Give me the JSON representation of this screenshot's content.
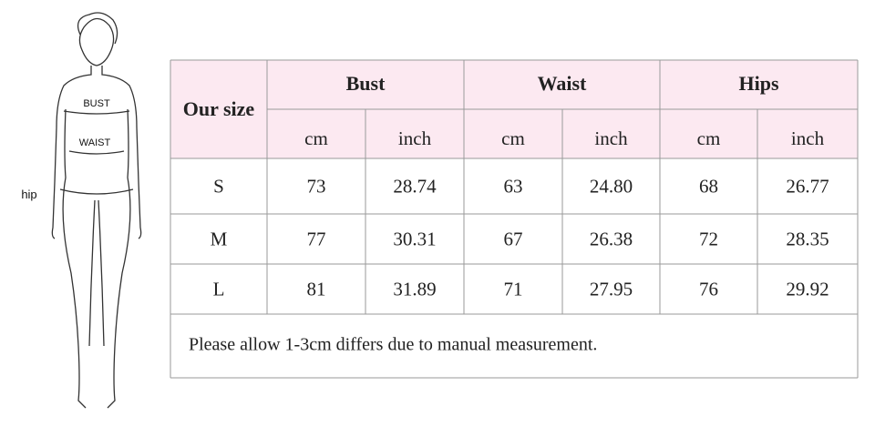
{
  "figure": {
    "bust": "BUST",
    "waist": "WAIST",
    "hip": "hip"
  },
  "table": {
    "corner": "Our size",
    "groups": [
      "Bust",
      "Waist",
      "Hips"
    ],
    "units": [
      "cm",
      "inch",
      "cm",
      "inch",
      "cm",
      "inch"
    ],
    "rows": [
      [
        "S",
        "73",
        "28.74",
        "63",
        "24.80",
        "68",
        "26.77"
      ],
      [
        "M",
        "77",
        "30.31",
        "67",
        "26.38",
        "72",
        "28.35"
      ],
      [
        "L",
        "81",
        "31.89",
        "71",
        "27.95",
        "76",
        "29.92"
      ]
    ],
    "note": "Please allow 1-3cm differs due to manual measurement."
  }
}
